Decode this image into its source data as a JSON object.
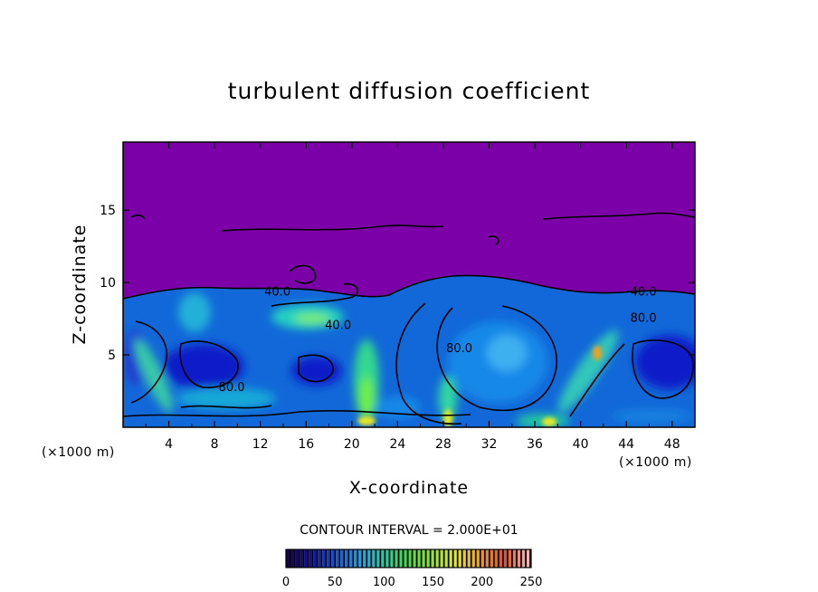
{
  "chart_data": {
    "type": "heatmap",
    "title": "turbulent diffusion coefficient",
    "xlabel": "X-coordinate",
    "ylabel": "Z-coordinate",
    "x_unit": "(×1000 m)",
    "y_unit": "(×1000 m)",
    "xlim": [
      0,
      50
    ],
    "ylim": [
      0,
      19.7
    ],
    "x_ticks": [
      4,
      8,
      12,
      16,
      20,
      24,
      28,
      32,
      36,
      40,
      44,
      48
    ],
    "y_ticks": [
      5,
      10,
      15
    ],
    "contour_interval_text": "CONTOUR INTERVAL = 2.000E+01",
    "contour_labels": [
      {
        "text": "40.0",
        "x": 13.5,
        "y": 9.1
      },
      {
        "text": "40.0",
        "x": 18.8,
        "y": 6.8
      },
      {
        "text": "40.0",
        "x": 45.5,
        "y": 9.1
      },
      {
        "text": "80.0",
        "x": 45.5,
        "y": 7.3
      },
      {
        "text": "80.0",
        "x": 9.5,
        "y": 2.5
      },
      {
        "text": "80.0",
        "x": 29.4,
        "y": 5.2
      }
    ],
    "colorbar": {
      "range": [
        0,
        250
      ],
      "ticks": [
        0,
        50,
        100,
        150,
        200,
        250
      ],
      "colors": [
        "#1a0050",
        "#1010a0",
        "#1050d8",
        "#18a0e8",
        "#20d0b0",
        "#40e040",
        "#90ea20",
        "#e8e820",
        "#f0a020",
        "#e05020",
        "#ffb0b0"
      ]
    },
    "background_color": "#7b00a8"
  }
}
